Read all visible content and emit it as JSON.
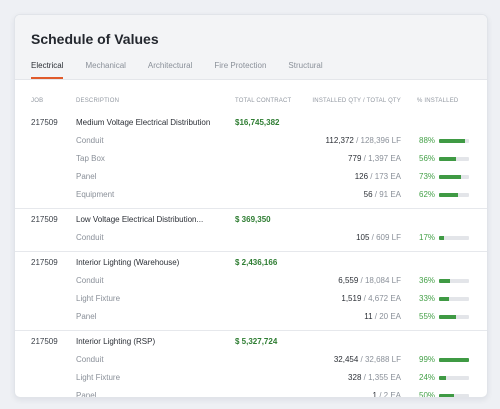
{
  "title": "Schedule of Values",
  "tabs": [
    {
      "label": "Electrical",
      "active": true
    },
    {
      "label": "Mechanical",
      "active": false
    },
    {
      "label": "Architectural",
      "active": false
    },
    {
      "label": "Fire Protection",
      "active": false
    },
    {
      "label": "Structural",
      "active": false
    }
  ],
  "columns": {
    "job": "JOB",
    "description": "DESCRIPTION",
    "total_contract": "TOTAL CONTRACT",
    "installed_qty": "INSTALLED QTY / TOTAL QTY",
    "pct_installed": "% INSTALLED"
  },
  "colors": {
    "accent": "#e05a2b",
    "money": "#2e7d32",
    "progress": "#3f9a44",
    "pct_text": "#43a047"
  },
  "groups": [
    {
      "job": "217509",
      "description": "Medium Voltage Electrical Distribution",
      "total": "$16,745,382",
      "items": [
        {
          "name": "Conduit",
          "installed": "112,372",
          "of": " / 128,396 LF",
          "pct": "88%",
          "fraction": 0.88
        },
        {
          "name": "Tap Box",
          "installed": "779",
          "of": " / 1,397 EA",
          "pct": "56%",
          "fraction": 0.56
        },
        {
          "name": "Panel",
          "installed": "126",
          "of": " / 173 EA",
          "pct": "73%",
          "fraction": 0.73
        },
        {
          "name": "Equipment",
          "installed": "56",
          "of": " / 91 EA",
          "pct": "62%",
          "fraction": 0.62
        }
      ]
    },
    {
      "job": "217509",
      "description": "Low Voltage Electrical Distribution...",
      "total": "$ 369,350",
      "items": [
        {
          "name": "Conduit",
          "installed": "105",
          "of": " / 609 LF",
          "pct": "17%",
          "fraction": 0.17
        }
      ]
    },
    {
      "job": "217509",
      "description": "Interior Lighting (Warehouse)",
      "total": "$ 2,436,166",
      "items": [
        {
          "name": "Conduit",
          "installed": "6,559",
          "of": " / 18,084 LF",
          "pct": "36%",
          "fraction": 0.36
        },
        {
          "name": "Light Fixture",
          "installed": "1,519",
          "of": " / 4,672 EA",
          "pct": "33%",
          "fraction": 0.33
        },
        {
          "name": "Panel",
          "installed": "11",
          "of": " / 20 EA",
          "pct": "55%",
          "fraction": 0.55
        }
      ]
    },
    {
      "job": "217509",
      "description": "Interior Lighting (RSP)",
      "total": "$ 5,327,724",
      "items": [
        {
          "name": "Conduit",
          "installed": "32,454",
          "of": " / 32,688 LF",
          "pct": "99%",
          "fraction": 0.99
        },
        {
          "name": "Light Fixture",
          "installed": "328",
          "of": " / 1,355 EA",
          "pct": "24%",
          "fraction": 0.24
        },
        {
          "name": "Panel",
          "installed": "1",
          "of": " / 2 EA",
          "pct": "50%",
          "fraction": 0.5
        }
      ]
    }
  ]
}
